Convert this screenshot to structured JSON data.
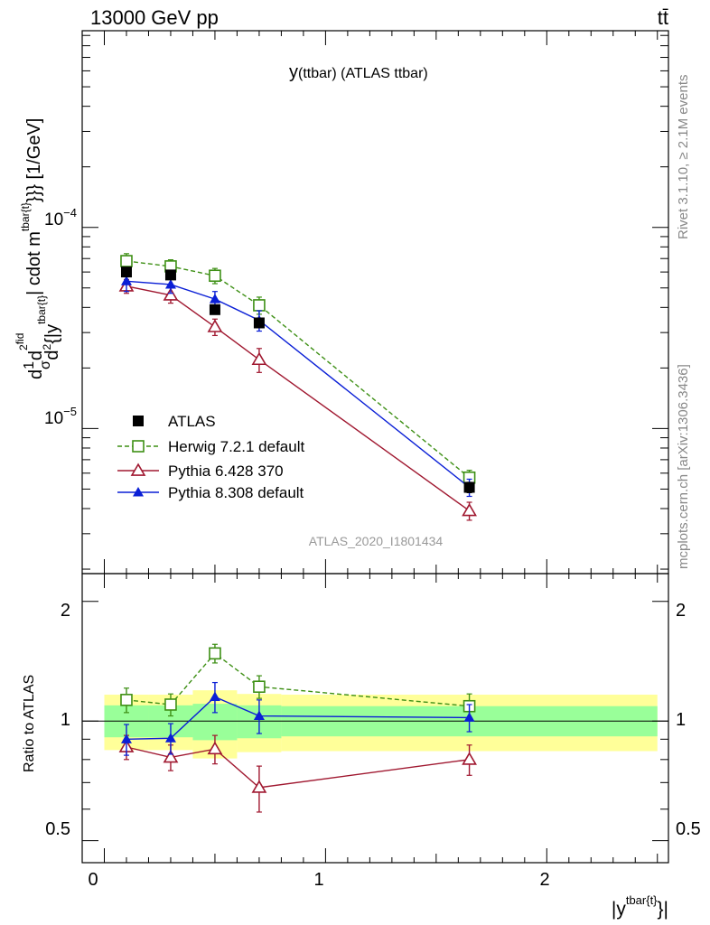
{
  "header": {
    "energy_label": "13000 GeV pp",
    "process_label": "tt̄"
  },
  "side_labels": {
    "rivet": "Rivet 3.1.10, ≥ 2.1M events",
    "mcplots": "mcplots.cern.ch [arXiv:1306.3436]"
  },
  "chart_data": [
    {
      "type": "line",
      "scale": "log",
      "title": "y(ttbar) (ATLAS ttbar)",
      "title_main": "y",
      "title_sub": "(ttbar) (ATLAS ttbar)",
      "ylabel": "d1/σ d d²σ^fid / d²{|y^tbar{t}|} cdot m^tbar{t}}}} [1/GeV]",
      "ylabel_parts": {
        "d": "d",
        "one": "1",
        "sigma": "σ",
        "d2": "d",
        "sup2": "2",
        "fid": "fid",
        "den_d": "d",
        "den_2": "2",
        "den_y": "{|y",
        "sup_ybar": "tbar{t}",
        "mid": "| cdot m",
        "sup_m": "tbar{t}",
        "tail": "}}} [1/GeV]"
      },
      "watermark": "ATLAS_2020_I1801434",
      "xlim": [
        -0.1,
        2.55
      ],
      "ylim": [
        1.9e-06,
        0.00095
      ],
      "y_tick_labels": [
        {
          "base": "10",
          "exp": "−4",
          "value": 0.0001
        },
        {
          "base": "10",
          "exp": "−5",
          "value": 1e-05
        }
      ],
      "x": [
        0.1,
        0.3,
        0.5,
        0.7,
        1.65
      ],
      "series": [
        {
          "name": "ATLAS",
          "values": [
            6e-05,
            5.8e-05,
            3.9e-05,
            3.35e-05,
            5.1e-06
          ],
          "errors": [
            2.5e-06,
            2.5e-06,
            1.8e-06,
            1.5e-06,
            3e-07
          ],
          "color": "#000000",
          "marker": "square-filled",
          "line": "none"
        },
        {
          "name": "Herwig 7.2.1 default",
          "values": [
            6.8e-05,
            6.4e-05,
            5.75e-05,
            4.1e-05,
            5.7e-06
          ],
          "errors": [
            6e-06,
            5e-06,
            5e-06,
            4e-06,
            5e-07
          ],
          "color": "#3d8f14",
          "marker": "square-open",
          "line": "dashed"
        },
        {
          "name": "Pythia 6.428 370",
          "values": [
            5.1e-05,
            4.6e-05,
            3.2e-05,
            2.2e-05,
            3.9e-06
          ],
          "errors": [
            4e-06,
            4e-06,
            3e-06,
            3e-06,
            4e-07
          ],
          "color": "#a01830",
          "marker": "triangle-open",
          "line": "solid"
        },
        {
          "name": "Pythia 8.308 default",
          "values": [
            5.4e-05,
            5.2e-05,
            4.4e-05,
            3.45e-05,
            5.1e-06
          ],
          "errors": [
            6e-06,
            5e-06,
            4e-06,
            4e-06,
            5e-07
          ],
          "color": "#0a1fd6",
          "marker": "triangle-filled",
          "line": "solid"
        }
      ]
    },
    {
      "type": "line",
      "ylabel": "Ratio to ATLAS",
      "ylim": [
        0.44,
        2.35
      ],
      "xlim": [
        -0.1,
        2.55
      ],
      "xlabel": "|y^tbar{t}}|",
      "xlabel_parts": {
        "main": "|y",
        "sup": "tbar{t}",
        "tail": "}|"
      },
      "y_ticks": [
        {
          "label": "2",
          "value": 2
        },
        {
          "label": "1",
          "value": 1
        },
        {
          "label": "0.5",
          "value": 0.5
        }
      ],
      "x_ticks": [
        {
          "label": "0",
          "value": 0
        },
        {
          "label": "1",
          "value": 1
        },
        {
          "label": "2",
          "value": 2
        }
      ],
      "reference_line": 1,
      "bands": [
        {
          "x0": 0.0,
          "x1": 0.2,
          "yellow": [
            0.845,
            1.165
          ],
          "green": [
            0.91,
            1.095
          ]
        },
        {
          "x0": 0.2,
          "x1": 0.4,
          "yellow": [
            0.845,
            1.165
          ],
          "green": [
            0.91,
            1.095
          ]
        },
        {
          "x0": 0.4,
          "x1": 0.6,
          "yellow": [
            0.805,
            1.195
          ],
          "green": [
            0.895,
            1.105
          ]
        },
        {
          "x0": 0.6,
          "x1": 0.8,
          "yellow": [
            0.835,
            1.17
          ],
          "green": [
            0.905,
            1.095
          ]
        },
        {
          "x0": 0.8,
          "x1": 2.5,
          "yellow": [
            0.84,
            1.165
          ],
          "green": [
            0.915,
            1.09
          ]
        }
      ],
      "x": [
        0.1,
        0.3,
        0.5,
        0.7,
        1.65
      ],
      "series": [
        {
          "name": "Herwig 7.2.1 default",
          "values": [
            1.13,
            1.1,
            1.48,
            1.22,
            1.09
          ],
          "errors": [
            0.08,
            0.07,
            0.08,
            0.08,
            0.08
          ],
          "color": "#3d8f14",
          "marker": "square-open",
          "line": "dashed"
        },
        {
          "name": "Pythia 6.428 370",
          "values": [
            0.86,
            0.81,
            0.85,
            0.68,
            0.8
          ],
          "errors": [
            0.06,
            0.06,
            0.07,
            0.09,
            0.07
          ],
          "color": "#a01830",
          "marker": "triangle-open",
          "line": "solid"
        },
        {
          "name": "Pythia 8.308 default",
          "values": [
            0.9,
            0.905,
            1.15,
            1.03,
            1.02
          ],
          "errors": [
            0.08,
            0.08,
            0.1,
            0.1,
            0.08
          ],
          "color": "#0a1fd6",
          "marker": "triangle-filled",
          "line": "solid"
        }
      ]
    }
  ]
}
